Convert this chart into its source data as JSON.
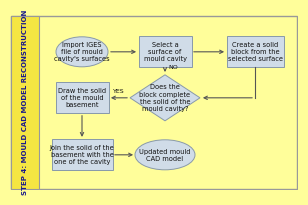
{
  "background_color": "#FFFE9A",
  "sidebar_color": "#F5E642",
  "sidebar_text": "STEP 4: MOULD CAD MODEL RECONSTRUCTION",
  "sidebar_text_color": "#1A1A8C",
  "box_fill": "#D0DCE8",
  "box_edge": "#8899AA",
  "oval_fill": "#D0DCE8",
  "oval_edge": "#8899AA",
  "diamond_fill": "#D0DCE8",
  "diamond_edge": "#8899AA",
  "arrow_color": "#555555",
  "text_color": "#111111",
  "border_color": "#999999",
  "label_no": "NO",
  "label_yes": "YES",
  "node_texts": {
    "import": "Import IGES\nfile of mould\ncavity's surfaces",
    "select": "Select a\nsurface of\nmould cavity",
    "create": "Create a solid\nblock from the\nselected surface",
    "diamond": "Does the\nblock complete\nthe solid of the\nmould cavity?",
    "draw": "Draw the solid\nof the mould\nbasement",
    "join": "Join the solid of the\nbasement with the\none of the cavity",
    "updated": "Updated mould\nCAD model"
  },
  "fontsize": 4.8,
  "sidebar_fontsize": 5.0
}
